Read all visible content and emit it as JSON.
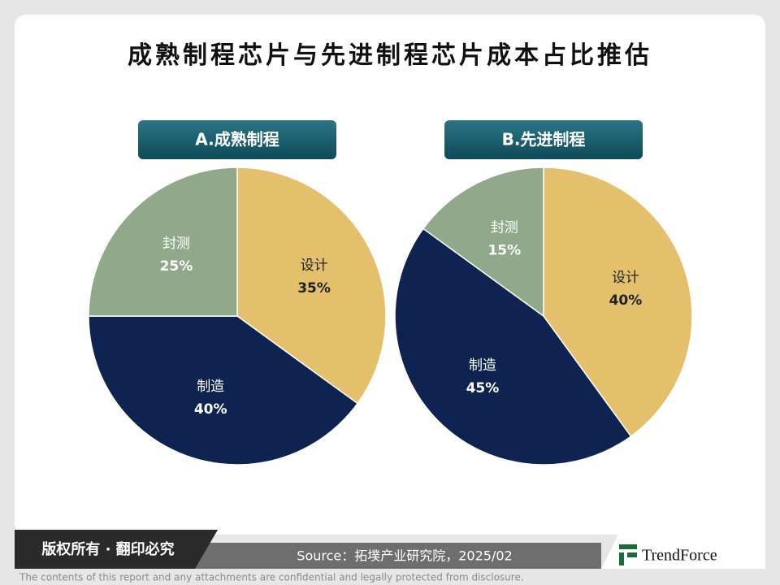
{
  "title": "成熟制程芯片与先进制程芯片成本占比推估",
  "chart_data": [
    {
      "type": "pie",
      "title": "A.成熟制程",
      "categories": [
        "设计",
        "制造",
        "封测"
      ],
      "values": [
        35,
        40,
        25
      ],
      "value_labels": [
        "35%",
        "40%",
        "25%"
      ],
      "colors": [
        "#e5c06c",
        "#0e2350",
        "#8fa98a"
      ]
    },
    {
      "type": "pie",
      "title": "B.先进制程",
      "categories": [
        "设计",
        "制造",
        "封测"
      ],
      "values": [
        40,
        45,
        15
      ],
      "value_labels": [
        "40%",
        "45%",
        "15%"
      ],
      "colors": [
        "#e5c06c",
        "#0e2350",
        "#8fa98a"
      ]
    }
  ],
  "footer": {
    "copyright": "版权所有 · 翻印必究",
    "source": "Source：拓墣产业研究院，2025/02",
    "logo": "TrendForce",
    "disclaimer": "The contents of this report and any attachments are confidential and legally protected from disclosure."
  }
}
